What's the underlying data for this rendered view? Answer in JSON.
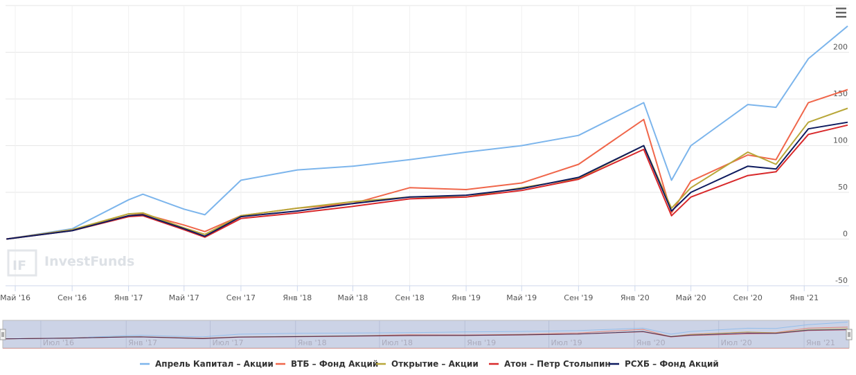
{
  "watermark": "InvestFunds",
  "menu_icon": "hamburger-menu-icon",
  "chart_data": {
    "type": "line",
    "title": "",
    "xlabel": "",
    "ylabel": "",
    "ylim": [
      -50,
      250
    ],
    "xlim": [
      "2016-04-10",
      "2021-04-08"
    ],
    "grid": true,
    "legend_placement": "bottom-center",
    "yticks": [
      -50,
      0,
      50,
      100,
      150,
      200
    ],
    "xticks": [
      {
        "date": "2016-05-01",
        "label": "Май '16"
      },
      {
        "date": "2016-09-01",
        "label": "Сен '16"
      },
      {
        "date": "2017-01-01",
        "label": "Янв '17"
      },
      {
        "date": "2017-05-01",
        "label": "Май '17"
      },
      {
        "date": "2017-09-01",
        "label": "Сен '17"
      },
      {
        "date": "2018-01-01",
        "label": "Янв '18"
      },
      {
        "date": "2018-05-01",
        "label": "Май '18"
      },
      {
        "date": "2018-09-01",
        "label": "Сен '18"
      },
      {
        "date": "2019-01-01",
        "label": "Янв '19"
      },
      {
        "date": "2019-05-01",
        "label": "Май '19"
      },
      {
        "date": "2019-09-01",
        "label": "Сен '19"
      },
      {
        "date": "2020-01-01",
        "label": "Янв '20"
      },
      {
        "date": "2020-05-01",
        "label": "Май '20"
      },
      {
        "date": "2020-09-01",
        "label": "Сен '20"
      },
      {
        "date": "2021-01-01",
        "label": "Янв '21"
      }
    ],
    "navigator_ticks": [
      {
        "date": "2016-07-01",
        "label": "Июл '16"
      },
      {
        "date": "2017-01-01",
        "label": "Янв '17"
      },
      {
        "date": "2017-07-01",
        "label": "Июл '17"
      },
      {
        "date": "2018-01-01",
        "label": "Янв '18"
      },
      {
        "date": "2018-07-01",
        "label": "Июл '18"
      },
      {
        "date": "2019-01-01",
        "label": "Янв '19"
      },
      {
        "date": "2019-07-01",
        "label": "Июл '19"
      },
      {
        "date": "2020-01-01",
        "label": "Янв '20"
      },
      {
        "date": "2020-07-01",
        "label": "Июл '20"
      },
      {
        "date": "2021-01-01",
        "label": "Янв '21"
      }
    ],
    "x": [
      "2016-04-12",
      "2016-09-01",
      "2017-01-01",
      "2017-02-01",
      "2017-05-01",
      "2017-06-15",
      "2017-09-01",
      "2018-01-01",
      "2018-05-01",
      "2018-09-01",
      "2019-01-01",
      "2019-05-01",
      "2019-09-01",
      "2020-01-20",
      "2020-03-20",
      "2020-05-01",
      "2020-09-01",
      "2020-11-01",
      "2021-01-10",
      "2021-04-05"
    ],
    "series": [
      {
        "name": "Апрель Капитал – Акции",
        "color": "#7cb5ec",
        "values": [
          0,
          11,
          42,
          48,
          32,
          26,
          63,
          74,
          78,
          85,
          93,
          100,
          111,
          146,
          63,
          100,
          144,
          141,
          193,
          228
        ]
      },
      {
        "name": "ВТБ – Фонд Акций",
        "color": "#f0664a",
        "values": [
          0,
          10,
          25,
          27,
          15,
          8,
          25,
          33,
          38,
          55,
          53,
          60,
          80,
          128,
          28,
          62,
          90,
          85,
          146,
          160
        ]
      },
      {
        "name": "Открытие – Акции",
        "color": "#b8a739",
        "values": [
          0,
          10,
          27,
          28,
          12,
          5,
          25,
          33,
          40,
          45,
          45,
          55,
          65,
          100,
          33,
          55,
          93,
          80,
          125,
          140
        ]
      },
      {
        "name": "Атон – Петр Столыпин",
        "color": "#d8282a",
        "values": [
          0,
          9,
          24,
          25,
          10,
          2,
          22,
          28,
          35,
          43,
          45,
          52,
          64,
          96,
          25,
          45,
          68,
          72,
          112,
          122
        ]
      },
      {
        "name": "РСХБ – Фонд Акций",
        "color": "#0d1a5e",
        "values": [
          0,
          9,
          25,
          26,
          11,
          3,
          24,
          30,
          38,
          45,
          47,
          54,
          66,
          100,
          30,
          50,
          78,
          75,
          118,
          125
        ]
      }
    ]
  }
}
